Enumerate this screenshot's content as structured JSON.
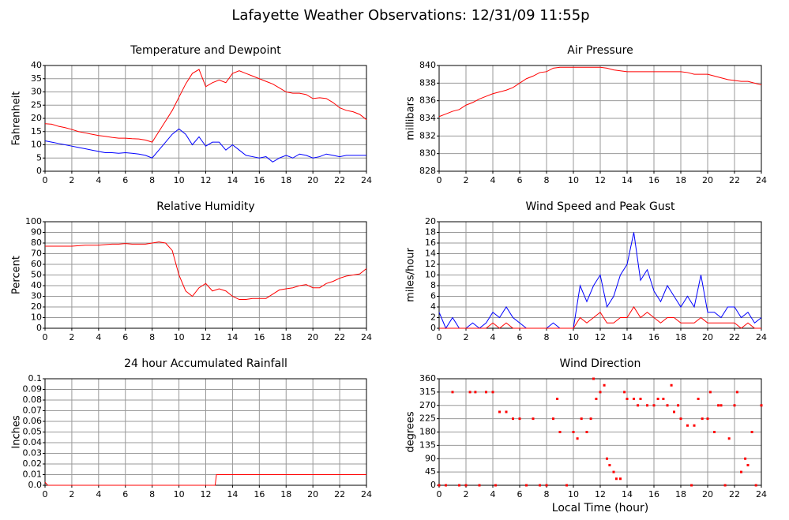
{
  "title": "Lafayette Weather Observations: 12/31/09 11:55p",
  "xlabel": "Local Time (hour)",
  "chart_data": [
    {
      "type": "line",
      "title": "Temperature and Dewpoint",
      "ylabel": "Fahrenheit",
      "x": [
        0,
        0.5,
        1,
        1.5,
        2,
        2.5,
        3,
        3.5,
        4,
        4.5,
        5,
        5.5,
        6,
        6.5,
        7,
        7.5,
        8,
        8.5,
        9,
        9.5,
        10,
        10.5,
        11,
        11.5,
        12,
        12.5,
        13,
        13.5,
        14,
        14.5,
        15,
        15.5,
        16,
        16.5,
        17,
        17.5,
        18,
        18.5,
        19,
        19.5,
        20,
        20.5,
        21,
        21.5,
        22,
        22.5,
        23,
        23.5,
        24
      ],
      "series": [
        {
          "color": "#ff0000",
          "values": [
            18,
            17.8,
            17,
            16.5,
            15.8,
            15,
            14.5,
            14,
            13.5,
            13.2,
            12.8,
            12.5,
            12.5,
            12.3,
            12.2,
            11.8,
            11,
            15,
            19,
            23,
            28,
            33,
            37,
            38.5,
            32,
            33.5,
            34.5,
            33.5,
            37,
            38,
            37,
            36,
            35,
            34,
            33,
            31.5,
            30,
            29.5,
            29.5,
            29,
            27.5,
            27.8,
            27.5,
            26,
            24,
            23,
            22.5,
            21.5,
            19.5
          ]
        },
        {
          "color": "#0000ff",
          "values": [
            11.5,
            11,
            10.5,
            10,
            9.5,
            9,
            8.5,
            8,
            7.5,
            7,
            7,
            6.8,
            7,
            6.8,
            6.5,
            6,
            5,
            8,
            11,
            14,
            16,
            14,
            10,
            13,
            9.5,
            11,
            11,
            8,
            10,
            8,
            6,
            5.5,
            5,
            5.5,
            3.5,
            5,
            6,
            5,
            6.5,
            6,
            5,
            5.5,
            6.5,
            6,
            5.5,
            6,
            6,
            6,
            6
          ]
        }
      ],
      "xlim": [
        0,
        24
      ],
      "xticks": [
        0,
        2,
        4,
        6,
        8,
        10,
        12,
        14,
        16,
        18,
        20,
        22,
        24
      ],
      "ylim": [
        0,
        40
      ],
      "yticks": [
        0,
        5,
        10,
        15,
        20,
        25,
        30,
        35,
        40
      ],
      "grid": true
    },
    {
      "type": "line",
      "title": "Air Pressure",
      "ylabel": "millibars",
      "x": [
        0,
        0.5,
        1,
        1.5,
        2,
        2.5,
        3,
        3.5,
        4,
        4.5,
        5,
        5.5,
        6,
        6.5,
        7,
        7.5,
        8,
        8.5,
        9,
        9.5,
        10,
        10.5,
        11,
        11.5,
        12,
        12.5,
        13,
        13.5,
        14,
        14.5,
        15,
        15.5,
        16,
        16.5,
        17,
        17.5,
        18,
        18.5,
        19,
        19.5,
        20,
        20.5,
        21,
        21.5,
        22,
        22.5,
        23,
        23.5,
        24
      ],
      "series": [
        {
          "color": "#ff0000",
          "values": [
            834.2,
            834.5,
            834.8,
            835,
            835.5,
            835.8,
            836.2,
            836.5,
            836.8,
            837,
            837.2,
            837.5,
            838,
            838.5,
            838.8,
            839.2,
            839.3,
            839.7,
            839.8,
            839.8,
            839.8,
            839.8,
            839.8,
            839.8,
            839.8,
            839.7,
            839.5,
            839.4,
            839.3,
            839.3,
            839.3,
            839.3,
            839.3,
            839.3,
            839.3,
            839.3,
            839.3,
            839.2,
            839,
            839,
            839,
            838.8,
            838.6,
            838.4,
            838.3,
            838.2,
            838.2,
            838,
            837.8
          ]
        }
      ],
      "xlim": [
        0,
        24
      ],
      "xticks": [
        0,
        2,
        4,
        6,
        8,
        10,
        12,
        14,
        16,
        18,
        20,
        22,
        24
      ],
      "ylim": [
        828,
        840
      ],
      "yticks": [
        828,
        830,
        832,
        834,
        836,
        838,
        840
      ],
      "grid": true
    },
    {
      "type": "line",
      "title": "Relative Humidity",
      "ylabel": "Percent",
      "x": [
        0,
        0.5,
        1,
        1.5,
        2,
        2.5,
        3,
        3.5,
        4,
        4.5,
        5,
        5.5,
        6,
        6.5,
        7,
        7.5,
        8,
        8.5,
        9,
        9.5,
        10,
        10.5,
        11,
        11.5,
        12,
        12.5,
        13,
        13.5,
        14,
        14.5,
        15,
        15.5,
        16,
        16.5,
        17,
        17.5,
        18,
        18.5,
        19,
        19.5,
        20,
        20.5,
        21,
        21.5,
        22,
        22.5,
        23,
        23.5,
        24
      ],
      "series": [
        {
          "color": "#ff0000",
          "values": [
            77,
            77,
            77,
            77,
            77,
            77.5,
            78,
            78,
            78,
            78.5,
            79,
            79,
            79.5,
            79,
            79,
            79,
            80,
            81,
            80,
            73,
            50,
            35,
            30,
            38,
            42,
            35,
            37,
            35,
            30,
            27,
            27,
            28,
            28,
            28,
            32,
            36,
            37,
            38,
            40,
            41,
            38,
            38,
            42,
            44,
            47,
            49,
            50,
            51,
            56
          ]
        }
      ],
      "xlim": [
        0,
        24
      ],
      "xticks": [
        0,
        2,
        4,
        6,
        8,
        10,
        12,
        14,
        16,
        18,
        20,
        22,
        24
      ],
      "ylim": [
        0,
        100
      ],
      "yticks": [
        0,
        10,
        20,
        30,
        40,
        50,
        60,
        70,
        80,
        90,
        100
      ],
      "grid": true
    },
    {
      "type": "line",
      "title": "Wind Speed and Peak Gust",
      "ylabel": "miles/hour",
      "x": [
        0,
        0.5,
        1,
        1.5,
        2,
        2.5,
        3,
        3.5,
        4,
        4.5,
        5,
        5.5,
        6,
        6.5,
        7,
        7.5,
        8,
        8.5,
        9,
        9.5,
        10,
        10.5,
        11,
        11.5,
        12,
        12.5,
        13,
        13.5,
        14,
        14.5,
        15,
        15.5,
        16,
        16.5,
        17,
        17.5,
        18,
        18.5,
        19,
        19.5,
        20,
        20.5,
        21,
        21.5,
        22,
        22.5,
        23,
        23.5,
        24
      ],
      "series": [
        {
          "color": "#0000ff",
          "values": [
            3,
            0,
            2,
            0,
            0,
            1,
            0,
            1,
            3,
            2,
            4,
            2,
            1,
            0,
            0,
            0,
            0,
            1,
            0,
            0,
            0,
            8,
            5,
            8,
            10,
            4,
            6,
            10,
            12,
            18,
            9,
            11,
            7,
            5,
            8,
            6,
            4,
            6,
            4,
            10,
            3,
            3,
            2,
            4,
            4,
            2,
            3,
            1,
            2
          ]
        },
        {
          "color": "#ff0000",
          "values": [
            0,
            0,
            0,
            0,
            0,
            0,
            0,
            0,
            1,
            0,
            1,
            0,
            0,
            0,
            0,
            0,
            0,
            0,
            0,
            0,
            0,
            2,
            1,
            2,
            3,
            1,
            1,
            2,
            2,
            4,
            2,
            3,
            2,
            1,
            2,
            2,
            1,
            1,
            1,
            2,
            1,
            1,
            1,
            1,
            1,
            0,
            1,
            0,
            0
          ]
        }
      ],
      "xlim": [
        0,
        24
      ],
      "xticks": [
        0,
        2,
        4,
        6,
        8,
        10,
        12,
        14,
        16,
        18,
        20,
        22,
        24
      ],
      "ylim": [
        0,
        20
      ],
      "yticks": [
        0,
        2,
        4,
        6,
        8,
        10,
        12,
        14,
        16,
        18,
        20
      ],
      "grid": true
    },
    {
      "type": "line",
      "title": "24 hour Accumulated Rainfall",
      "ylabel": "Inches",
      "x": [
        0,
        0.2,
        12.7,
        12.8,
        24
      ],
      "series": [
        {
          "color": "#ff0000",
          "values": [
            0.003,
            0,
            0,
            0.01,
            0.01
          ]
        }
      ],
      "xlim": [
        0,
        24
      ],
      "xticks": [
        0,
        2,
        4,
        6,
        8,
        10,
        12,
        14,
        16,
        18,
        20,
        22,
        24
      ],
      "ylim": [
        0,
        0.1
      ],
      "yticks": [
        {
          "value": 0,
          "label": "0.0"
        },
        0.01,
        0.02,
        0.03,
        0.04,
        0.05,
        0.06,
        0.07,
        0.08,
        0.09,
        0.1
      ],
      "grid": true
    },
    {
      "type": "scatter",
      "title": "Wind Direction",
      "ylabel": "degrees",
      "x": [
        0,
        0.5,
        1,
        1.5,
        2,
        2.3,
        2.7,
        3,
        3.5,
        4,
        4.2,
        4.5,
        5,
        5.5,
        6,
        6.5,
        7,
        7.5,
        8,
        8.5,
        8.8,
        9,
        9.5,
        10,
        10.3,
        10.6,
        11,
        11.3,
        11.5,
        11.7,
        12,
        12.3,
        12.5,
        12.7,
        13,
        13.2,
        13.5,
        13.8,
        14,
        14.5,
        14.8,
        15,
        15.5,
        16,
        16.3,
        16.7,
        17,
        17.3,
        17.5,
        17.8,
        18,
        18.5,
        18.8,
        19,
        19.3,
        19.6,
        20,
        20.2,
        20.5,
        20.8,
        21,
        21.3,
        21.6,
        22,
        22.2,
        22.5,
        22.8,
        23,
        23.3,
        23.6,
        24
      ],
      "series": [
        {
          "color": "#ff0000",
          "values": [
            0,
            0,
            315,
            0,
            0,
            315,
            315,
            0,
            315,
            315,
            0,
            248,
            248,
            225,
            225,
            0,
            225,
            0,
            0,
            225,
            292,
            180,
            0,
            180,
            158,
            225,
            180,
            225,
            360,
            292,
            315,
            338,
            90,
            68,
            45,
            22,
            22,
            315,
            292,
            292,
            270,
            292,
            270,
            270,
            292,
            292,
            270,
            338,
            248,
            270,
            225,
            202,
            0,
            202,
            292,
            225,
            225,
            315,
            180,
            270,
            270,
            0,
            158,
            270,
            315,
            45,
            90,
            68,
            180,
            0,
            270
          ]
        }
      ],
      "xlim": [
        0,
        24
      ],
      "xticks": [
        0,
        2,
        4,
        6,
        8,
        10,
        12,
        14,
        16,
        18,
        20,
        22,
        24
      ],
      "ylim": [
        0,
        360
      ],
      "yticks": [
        0,
        45,
        90,
        135,
        180,
        225,
        270,
        315,
        360
      ],
      "grid": true
    }
  ]
}
